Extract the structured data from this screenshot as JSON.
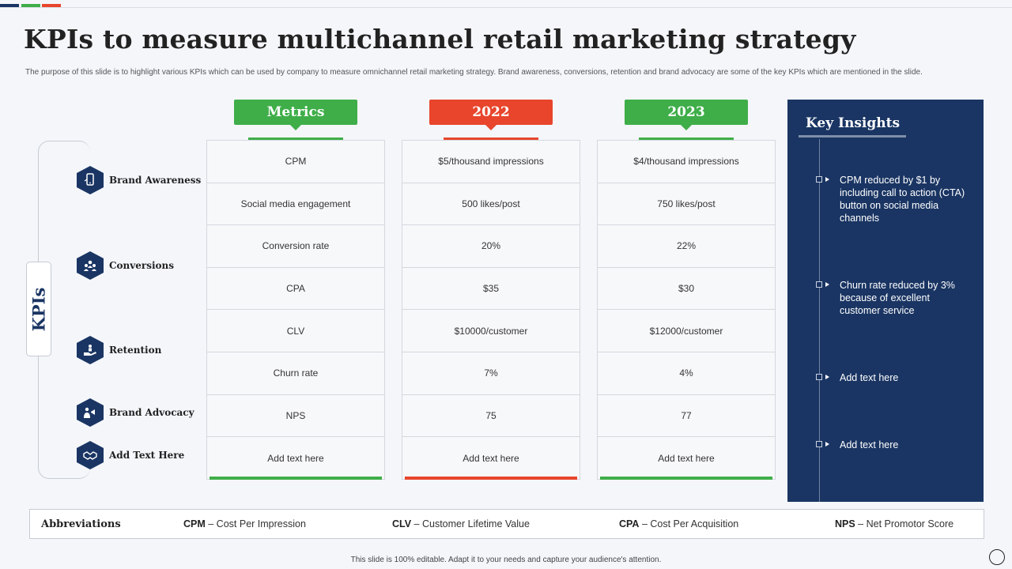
{
  "header": {
    "title": "KPIs to measure multichannel retail marketing strategy",
    "subtitle": "The purpose of this slide is to highlight various KPIs  which can be used by company to measure omnichannel retail marketing strategy. Brand awareness, conversions, retention and brand advocacy are some of the key KPIs  which are mentioned in  the slide."
  },
  "kpis": {
    "label": "KPIs",
    "items": [
      {
        "label": "Brand Awareness",
        "icon": "smartphone-icon"
      },
      {
        "label": "Conversions",
        "icon": "people-group-icon"
      },
      {
        "label": "Retention",
        "icon": "hand-person-icon"
      },
      {
        "label": "Brand Advocacy",
        "icon": "megaphone-person-icon"
      },
      {
        "label": "Add Text Here",
        "icon": "handshake-icon"
      }
    ]
  },
  "columns": [
    {
      "header": "Metrics",
      "color": "#3fae49",
      "cells": [
        "CPM",
        "Social media engagement",
        "Conversion rate",
        "CPA",
        "CLV",
        "Churn rate",
        "NPS",
        "Add text here"
      ]
    },
    {
      "header": "2022",
      "color": "#e8452c",
      "cells": [
        "$5/thousand impressions",
        "500 likes/post",
        "20%",
        "$35",
        "$10000/customer",
        "7%",
        "75",
        "Add text here"
      ]
    },
    {
      "header": "2023",
      "color": "#3fae49",
      "cells": [
        "$4/thousand impressions",
        "750 likes/post",
        "22%",
        "$30",
        "$12000/customer",
        "4%",
        "77",
        "Add text here"
      ]
    }
  ],
  "insights": {
    "title": "Key Insights",
    "items": [
      "CPM reduced  by $1 by including call to action (CTA) button on social media channels",
      "Churn rate reduced  by 3% because of excellent customer service",
      "Add text here",
      "Add text here"
    ]
  },
  "abbreviations": {
    "title": "Abbreviations",
    "items": [
      {
        "abbr": "CPM",
        "meaning": " – Cost Per Impression"
      },
      {
        "abbr": "CLV",
        "meaning": " – Customer Lifetime Value"
      },
      {
        "abbr": "CPA",
        "meaning": " – Cost Per Acquisition"
      },
      {
        "abbr": "NPS",
        "meaning": " – Net Promotor Score"
      }
    ]
  },
  "footer": "This slide is 100% editable.  Adapt it to your needs and capture your audience's attention.",
  "colors": {
    "navy": "#1a3563",
    "green": "#3fae49",
    "red": "#e8452c"
  }
}
